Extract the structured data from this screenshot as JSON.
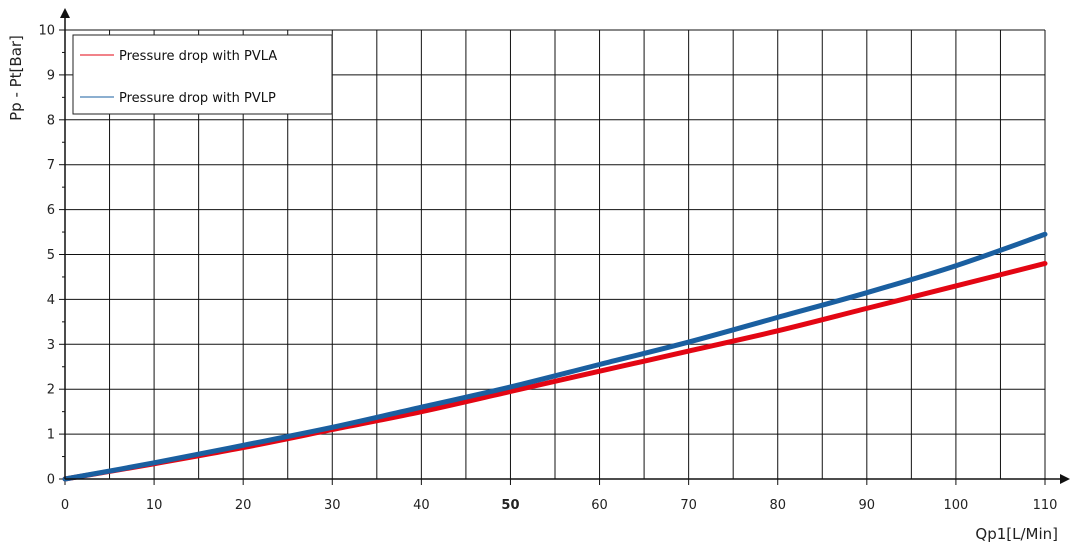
{
  "chart_data": {
    "type": "line",
    "xlabel": "Qp1[L/Min]",
    "ylabel": "Pp - Pt[Bar]",
    "xlim": [
      0,
      110
    ],
    "ylim": [
      0,
      10
    ],
    "x_ticks": [
      0,
      10,
      20,
      30,
      40,
      50,
      60,
      70,
      80,
      90,
      100,
      110
    ],
    "y_ticks": [
      0,
      1,
      2,
      3,
      4,
      5,
      6,
      7,
      8,
      9,
      10
    ],
    "x_minor_step": 5,
    "y_minor_step": 0.5,
    "bold_x_tick": 50,
    "grid": true,
    "legend_position": "top-left",
    "series": [
      {
        "name": "Pressure drop with PVLA",
        "color": "#e30613",
        "x": [
          0,
          10,
          20,
          30,
          40,
          50,
          60,
          70,
          80,
          90,
          100,
          110
        ],
        "y": [
          0,
          0.34,
          0.7,
          1.1,
          1.5,
          1.95,
          2.4,
          2.85,
          3.3,
          3.8,
          4.3,
          4.8
        ]
      },
      {
        "name": "Pressure drop with PVLP",
        "color": "#1a5fa0",
        "x": [
          0,
          10,
          20,
          30,
          40,
          50,
          60,
          70,
          80,
          90,
          100,
          110
        ],
        "y": [
          0,
          0.36,
          0.75,
          1.15,
          1.6,
          2.05,
          2.55,
          3.05,
          3.6,
          4.15,
          4.75,
          5.45
        ]
      }
    ]
  }
}
